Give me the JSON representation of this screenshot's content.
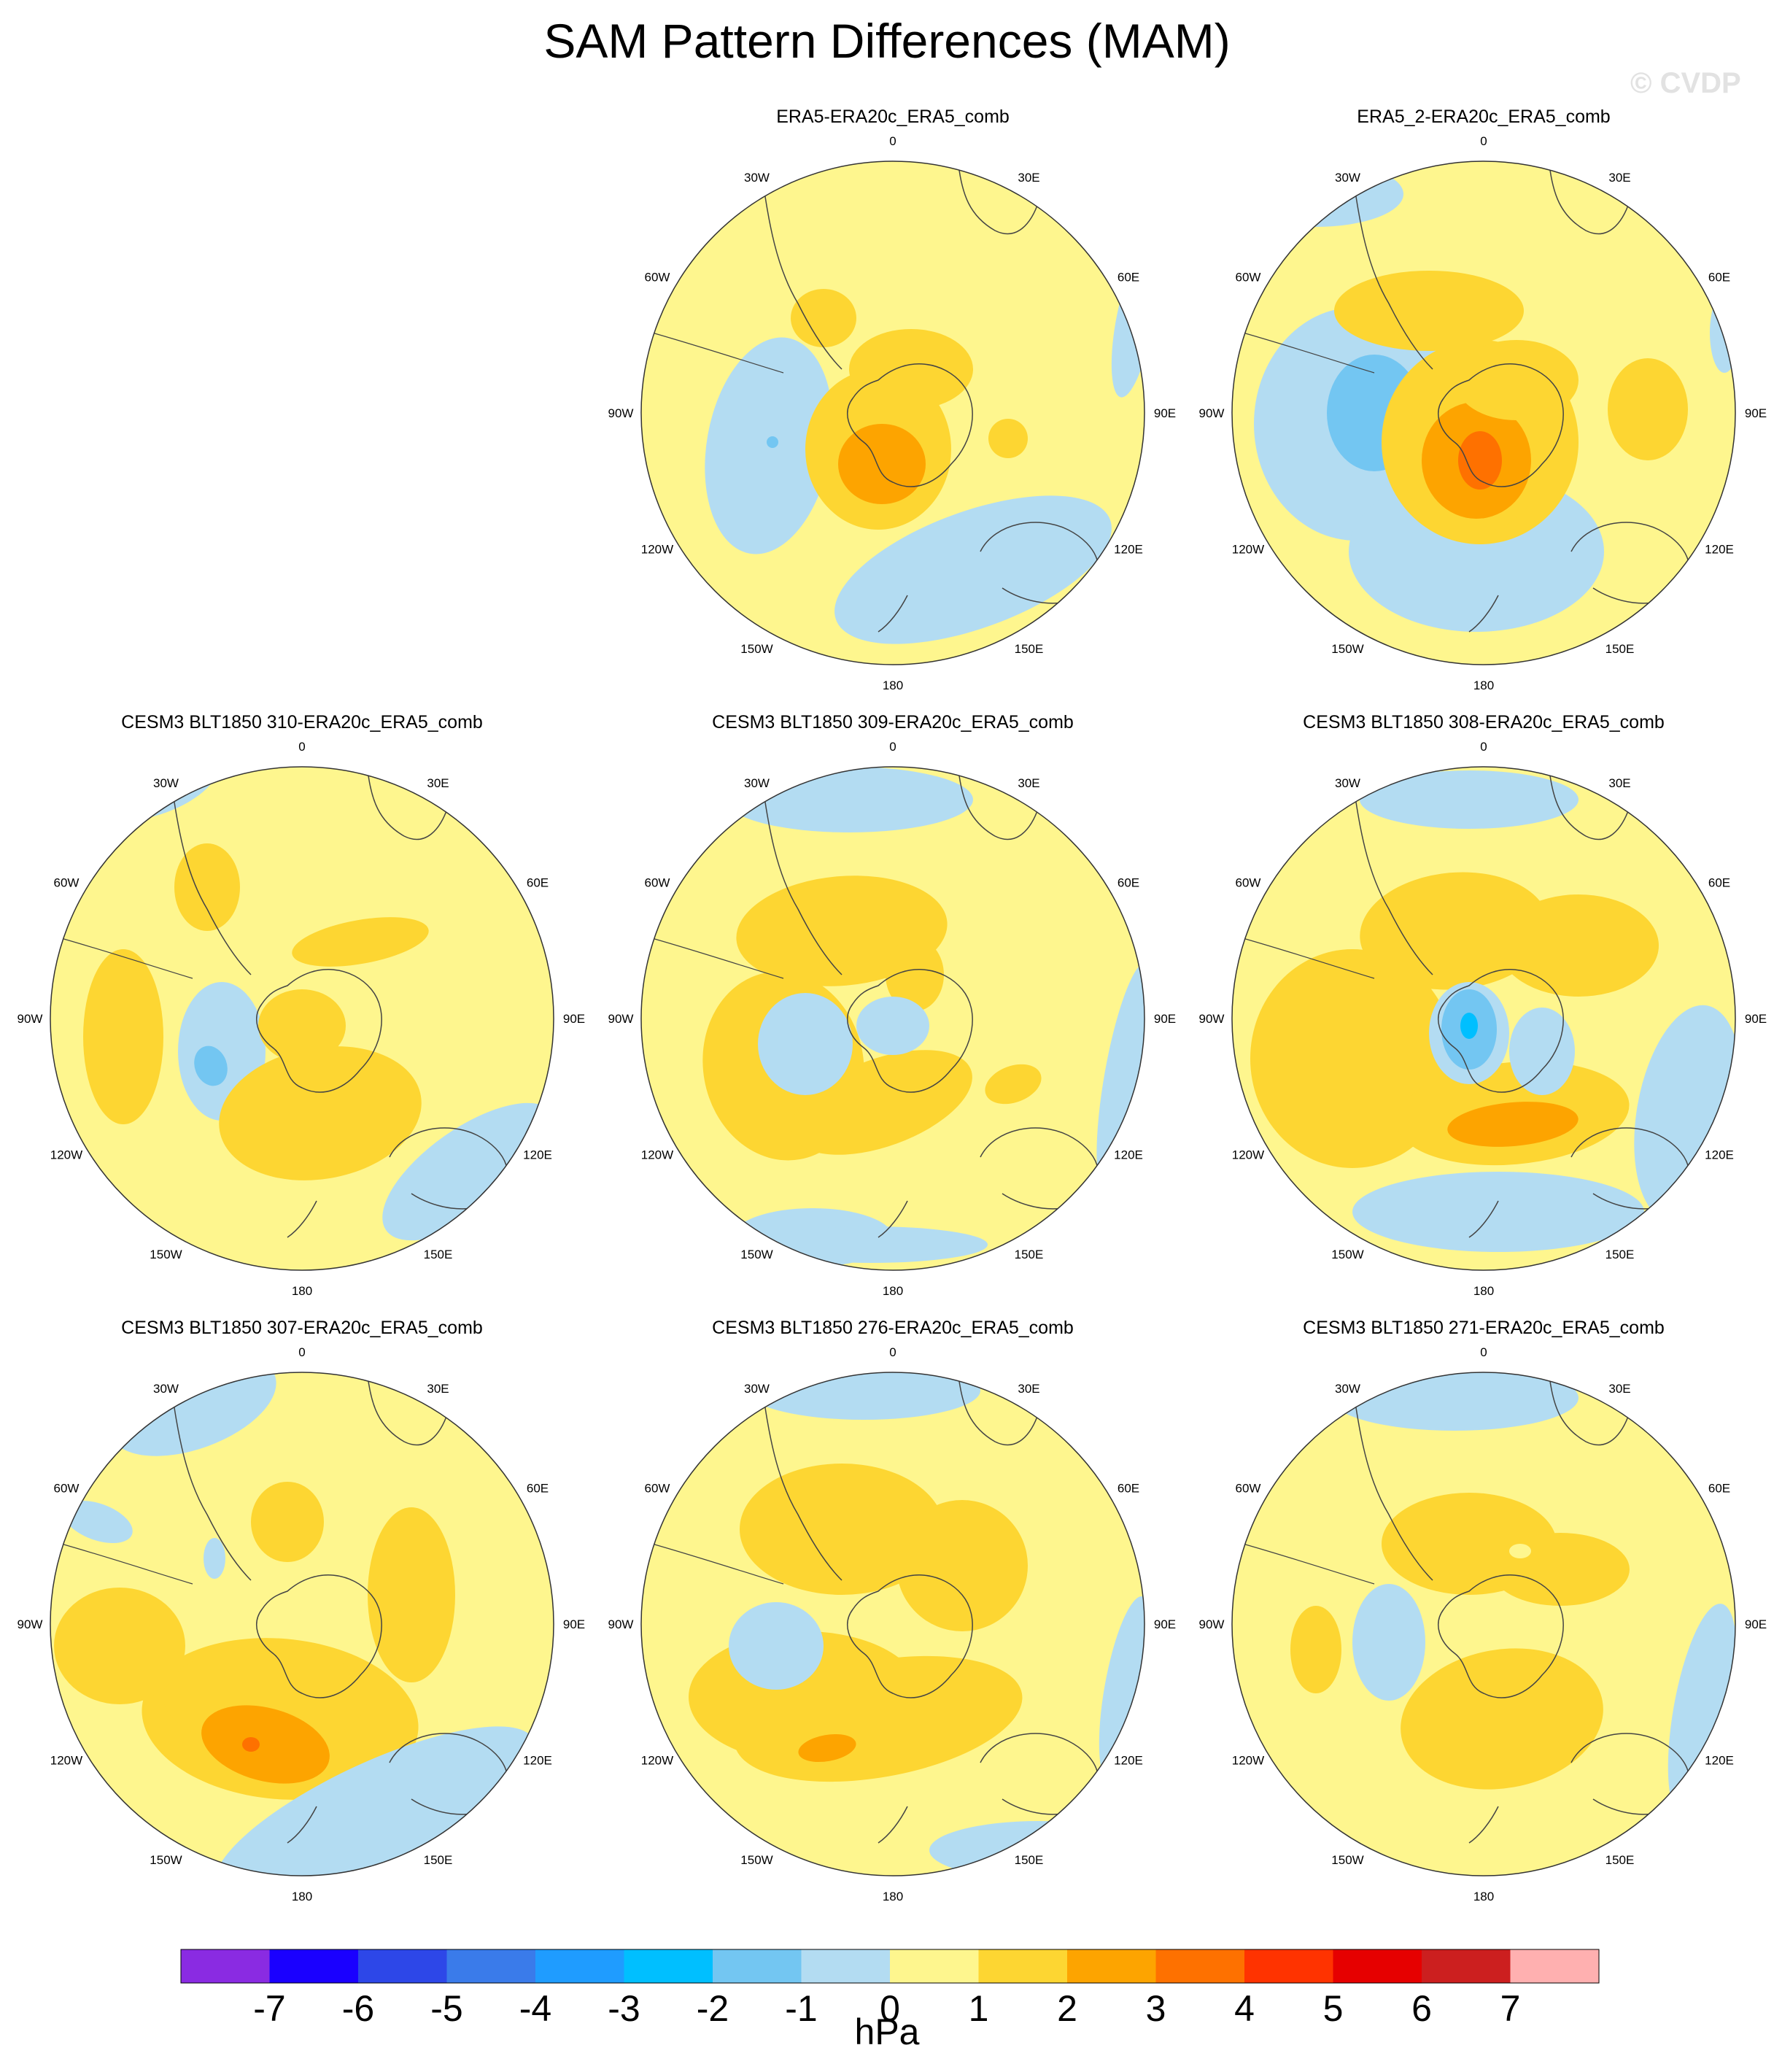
{
  "title": "SAM Pattern Differences (MAM)",
  "watermark": "© CVDP",
  "colors": {
    "zero_fill": "#fef68e",
    "neg1": "#b3dcf2",
    "neg2": "#73c6f2",
    "neg3": "#00bfff",
    "pos1": "#fdd632",
    "pos2": "#fda400",
    "pos3": "#fe7100",
    "coast": "#444444"
  },
  "longitude_labels": [
    "0",
    "30E",
    "60E",
    "90E",
    "120E",
    "150E",
    "180",
    "150W",
    "120W",
    "90W",
    "60W",
    "30W"
  ],
  "panels": [
    {
      "id": "p1",
      "title": "ERA5-ERA20c_ERA5_comb"
    },
    {
      "id": "p2",
      "title": "ERA5_2-ERA20c_ERA5_comb"
    },
    {
      "id": "p3",
      "title": "CESM3 BLT1850 310-ERA20c_ERA5_comb"
    },
    {
      "id": "p4",
      "title": "CESM3 BLT1850 309-ERA20c_ERA5_comb"
    },
    {
      "id": "p5",
      "title": "CESM3 BLT1850 308-ERA20c_ERA5_comb"
    },
    {
      "id": "p6",
      "title": "CESM3 BLT1850 307-ERA20c_ERA5_comb"
    },
    {
      "id": "p7",
      "title": "CESM3 BLT1850 276-ERA20c_ERA5_comb"
    },
    {
      "id": "p8",
      "title": "CESM3 BLT1850 271-ERA20c_ERA5_comb"
    }
  ],
  "colorbar": {
    "units": "hPa",
    "ticks": [
      "-7",
      "-6",
      "-5",
      "-4",
      "-3",
      "-2",
      "-1",
      "0",
      "1",
      "2",
      "3",
      "4",
      "5",
      "6",
      "7"
    ],
    "colors": [
      "#8a2be2",
      "#1a00ff",
      "#2d47e8",
      "#3a7bea",
      "#1f9cff",
      "#00bfff",
      "#73c6f2",
      "#b3dcf2",
      "#fef68e",
      "#fdd632",
      "#fda400",
      "#fe7100",
      "#ff3300",
      "#e60000",
      "#cc1f1f",
      "#ffb0b0"
    ]
  }
}
